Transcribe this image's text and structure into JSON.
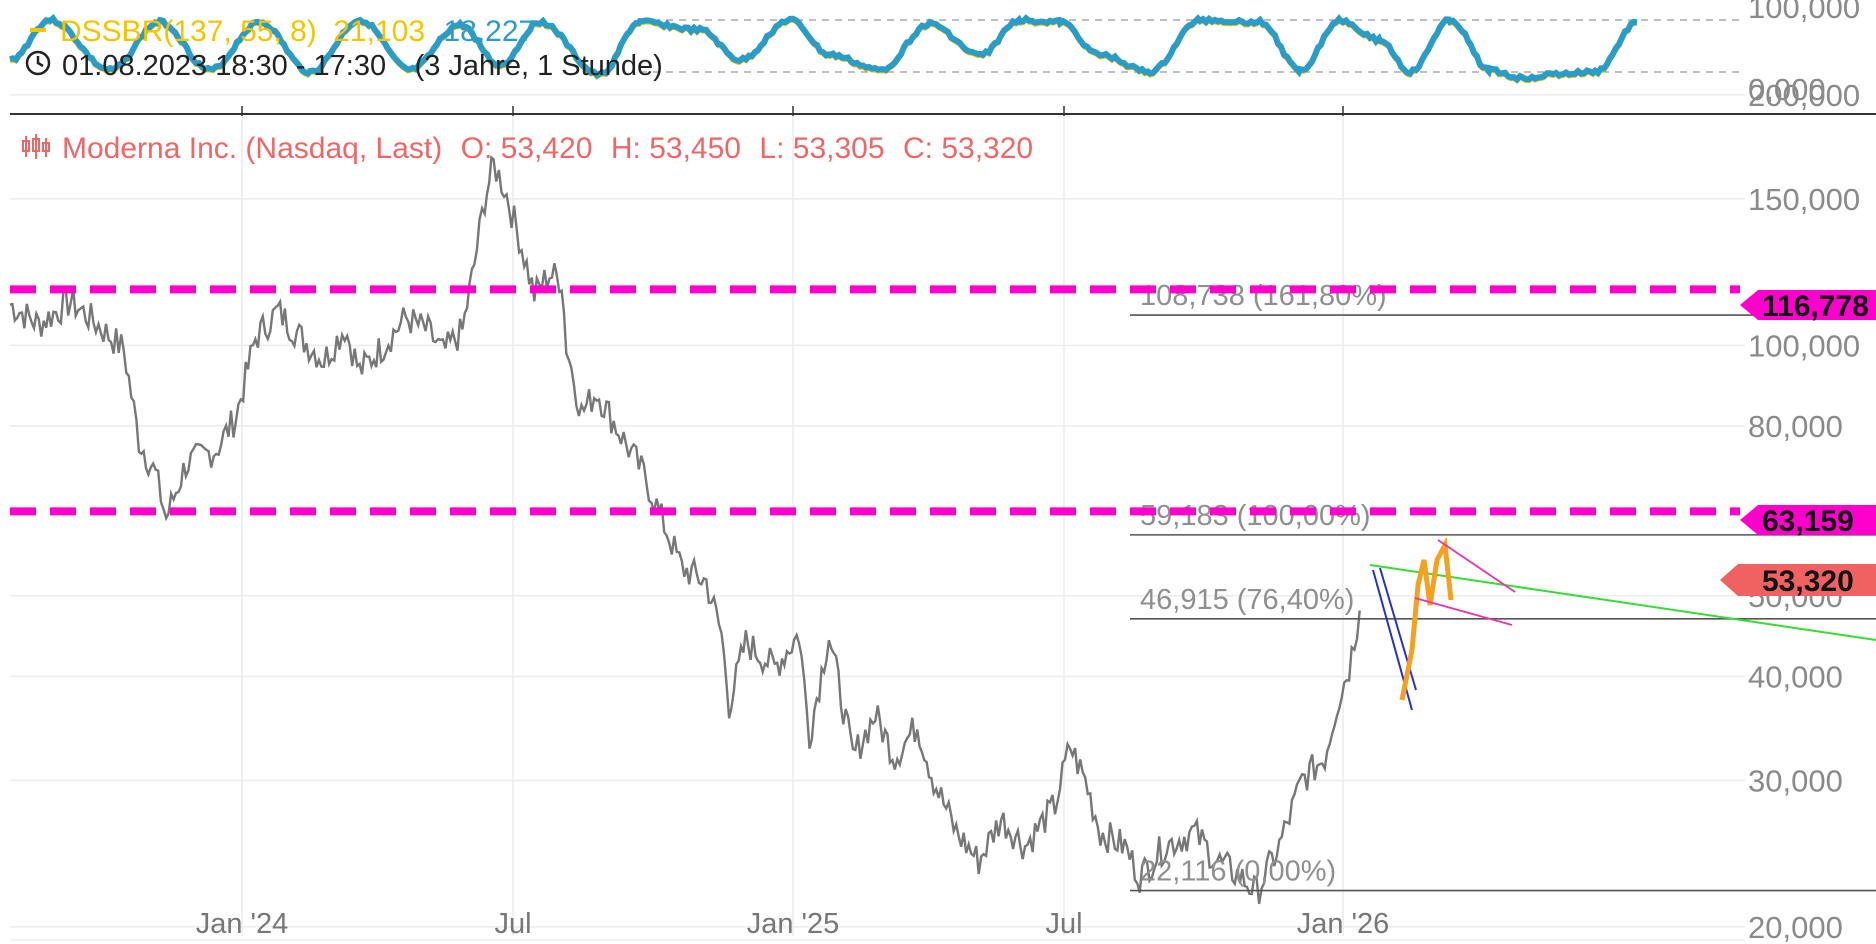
{
  "indicator": {
    "name": "DSSBR(137, 55, 8)",
    "value1": "21,103",
    "value2": "18,227",
    "period": "01.08.2023 18:30 - 17:30",
    "range": "(3 Jahre, 1 Stunde)",
    "y_labels": [
      "100,000",
      "0,000"
    ],
    "color_line": "#2a9cc8",
    "color_signal": "#f5c400"
  },
  "instrument": {
    "name": "Moderna Inc. (Nasdaq, Last)",
    "open": "O: 53,420",
    "high": "H: 53,450",
    "low": "L: 53,305",
    "close": "C: 53,320",
    "color": "#f06666"
  },
  "price_tags": {
    "upper_level": "116,778",
    "lower_level": "63,159",
    "last": "53,320",
    "level_color": "#ff00cc",
    "last_color": "#f06262"
  },
  "fib_labels": {
    "f1618": "108,738 (161,80%)",
    "f100": "59,183 (100,00%)",
    "f764": "46,915 (76,40%)",
    "f0": "22,116 (0,00%)"
  },
  "chart_data": {
    "type": "line",
    "title": "Moderna Inc. (Nasdaq, Last)",
    "xlabel": "",
    "ylabel": "",
    "y_scale": "log",
    "ylim": [
      19.5,
      205
    ],
    "y_ticks": [
      {
        "value": 200,
        "label": "200,000"
      },
      {
        "value": 150,
        "label": "150,000"
      },
      {
        "value": 100,
        "label": "100,000"
      },
      {
        "value": 80,
        "label": "80,000"
      },
      {
        "value": 50,
        "label": "50,000"
      },
      {
        "value": 40,
        "label": "40,000"
      },
      {
        "value": 30,
        "label": "30,000"
      },
      {
        "value": 20,
        "label": "20,000"
      }
    ],
    "x_ticks": [
      {
        "date": "2024-01",
        "label": "Jan '24"
      },
      {
        "date": "2024-07",
        "label": "Jul"
      },
      {
        "date": "2025-01",
        "label": "Jan '25"
      },
      {
        "date": "2025-07",
        "label": "Jul"
      },
      {
        "date": "2026-01",
        "label": "Jan '26"
      }
    ],
    "grid": true,
    "series": [
      {
        "color": "#777777",
        "points": [
          [
            "2023-08-01",
            112
          ],
          [
            "2023-08-20",
            106
          ],
          [
            "2023-09-10",
            113
          ],
          [
            "2023-09-25",
            107
          ],
          [
            "2023-10-15",
            99
          ],
          [
            "2023-10-25",
            77
          ],
          [
            "2023-11-05",
            70
          ],
          [
            "2023-11-12",
            62
          ],
          [
            "2023-11-25",
            72
          ],
          [
            "2023-12-15",
            75
          ],
          [
            "2023-12-28",
            82
          ],
          [
            "2024-01-10",
            102
          ],
          [
            "2024-01-25",
            110
          ],
          [
            "2024-02-10",
            102
          ],
          [
            "2024-02-25",
            96
          ],
          [
            "2024-03-10",
            105
          ],
          [
            "2024-03-20",
            93
          ],
          [
            "2024-04-05",
            100
          ],
          [
            "2024-04-20",
            108
          ],
          [
            "2024-05-05",
            104
          ],
          [
            "2024-05-15",
            98
          ],
          [
            "2024-05-28",
            104
          ],
          [
            "2024-06-05",
            125
          ],
          [
            "2024-06-12",
            150
          ],
          [
            "2024-06-18",
            165
          ],
          [
            "2024-06-25",
            155
          ],
          [
            "2024-07-05",
            135
          ],
          [
            "2024-07-15",
            115
          ],
          [
            "2024-07-25",
            122
          ],
          [
            "2024-08-02",
            120
          ],
          [
            "2024-08-05",
            100
          ],
          [
            "2024-08-15",
            83
          ],
          [
            "2024-08-25",
            88
          ],
          [
            "2024-09-10",
            78
          ],
          [
            "2024-09-25",
            70
          ],
          [
            "2024-10-05",
            63
          ],
          [
            "2024-10-20",
            54
          ],
          [
            "2024-11-05",
            52
          ],
          [
            "2024-11-15",
            45
          ],
          [
            "2024-11-20",
            37
          ],
          [
            "2024-12-01",
            44
          ],
          [
            "2024-12-20",
            41
          ],
          [
            "2025-01-05",
            45
          ],
          [
            "2025-01-12",
            34
          ],
          [
            "2025-01-25",
            45
          ],
          [
            "2025-02-10",
            32
          ],
          [
            "2025-02-25",
            36
          ],
          [
            "2025-03-10",
            32
          ],
          [
            "2025-03-25",
            35
          ],
          [
            "2025-04-05",
            30
          ],
          [
            "2025-04-20",
            26
          ],
          [
            "2025-05-05",
            24
          ],
          [
            "2025-05-20",
            27
          ],
          [
            "2025-06-05",
            25
          ],
          [
            "2025-06-25",
            28
          ],
          [
            "2025-07-05",
            33
          ],
          [
            "2025-07-15",
            30
          ],
          [
            "2025-07-25",
            26
          ],
          [
            "2025-08-10",
            25
          ],
          [
            "2025-08-20",
            23
          ],
          [
            "2025-09-05",
            25
          ],
          [
            "2025-09-25",
            26
          ],
          [
            "2025-10-10",
            24
          ],
          [
            "2025-10-25",
            23
          ],
          [
            "2025-11-05",
            22
          ],
          [
            "2025-11-20",
            25
          ],
          [
            "2025-12-05",
            30
          ],
          [
            "2025-12-20",
            32
          ],
          [
            "2025-12-28",
            37
          ],
          [
            "2026-01-05",
            41
          ],
          [
            "2026-01-12",
            48
          ]
        ]
      }
    ],
    "horizontal_levels": [
      116.778,
      63.159
    ],
    "fib_levels": [
      108.738,
      59.183,
      46.915,
      22.116
    ],
    "last_price": 53.32
  }
}
